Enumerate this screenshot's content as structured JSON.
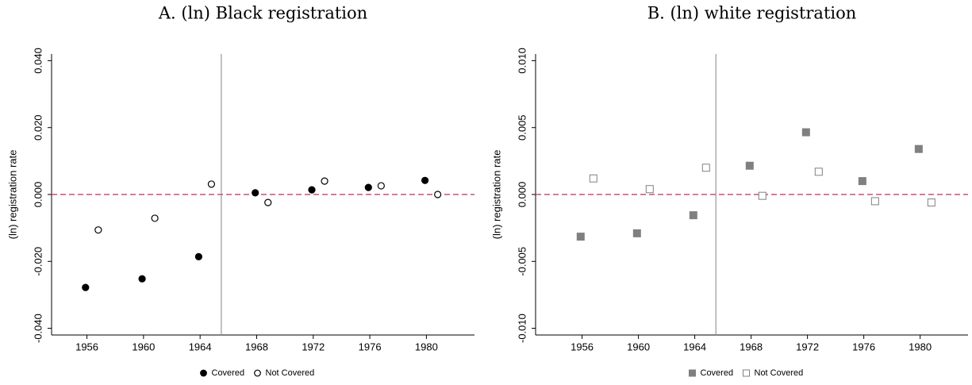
{
  "chart_data": [
    {
      "type": "scatter",
      "title": "A. (ln) Black registration",
      "ylabel": "(ln) registration rate",
      "xlim": [
        1953.5,
        1983.4
      ],
      "ylim": [
        -0.042,
        0.042
      ],
      "xticks": [
        1956,
        1960,
        1964,
        1968,
        1972,
        1976,
        1980
      ],
      "yticks": [
        {
          "value": -0.04,
          "label": "-0.040"
        },
        {
          "value": -0.02,
          "label": "-0.020"
        },
        {
          "value": 0,
          "label": "0.000"
        },
        {
          "value": 0.02,
          "label": "0.020"
        },
        {
          "value": 0.04,
          "label": "0.040"
        }
      ],
      "hline": 0,
      "hline_color": "#c8507a",
      "vline": 1965.5,
      "vline_color": "#999999",
      "series": [
        {
          "name": "Covered",
          "marker": "circle",
          "color": "#000000",
          "filled": true,
          "x": [
            1955.9,
            1959.9,
            1963.9,
            1967.9,
            1971.9,
            1975.9,
            1979.9
          ],
          "values": [
            -0.0278,
            -0.0252,
            -0.0186,
            0.0005,
            0.0014,
            0.0021,
            0.0042
          ]
        },
        {
          "name": "Not Covered",
          "marker": "circle",
          "color": "#000000",
          "filled": false,
          "x": [
            1956.8,
            1960.8,
            1964.8,
            1968.8,
            1972.8,
            1976.8,
            1980.8
          ],
          "values": [
            -0.0106,
            -0.0071,
            0.0031,
            -0.0024,
            0.004,
            0.0026,
            0.0
          ]
        }
      ]
    },
    {
      "type": "scatter",
      "title": "B. (ln) white registration",
      "ylabel": "(ln) registration rate",
      "xlim": [
        1952.7,
        1983.4
      ],
      "ylim": [
        -0.0105,
        0.0105
      ],
      "xticks": [
        1956,
        1960,
        1964,
        1968,
        1972,
        1976,
        1980
      ],
      "yticks": [
        {
          "value": -0.01,
          "label": "-0.010"
        },
        {
          "value": -0.005,
          "label": "-0.005"
        },
        {
          "value": 0,
          "label": "0.000"
        },
        {
          "value": 0.005,
          "label": "0.005"
        },
        {
          "value": 0.01,
          "label": "0.010"
        }
      ],
      "hline": 0,
      "hline_color": "#c8507a",
      "vline": 1965.5,
      "vline_color": "#999999",
      "series": [
        {
          "name": "Covered",
          "marker": "square",
          "color": "#808080",
          "filled": true,
          "x": [
            1955.9,
            1959.9,
            1963.9,
            1967.9,
            1971.9,
            1975.9,
            1979.9
          ],
          "values": [
            -0.00315,
            -0.0029,
            -0.00155,
            0.00215,
            0.00465,
            0.001,
            0.0034
          ]
        },
        {
          "name": "Not Covered",
          "marker": "square",
          "color": "#808080",
          "filled": false,
          "x": [
            1956.8,
            1960.8,
            1964.8,
            1968.8,
            1972.8,
            1976.8,
            1980.8
          ],
          "values": [
            0.0012,
            0.0004,
            0.002,
            -0.0001,
            0.0017,
            -0.0005,
            -0.0006
          ]
        }
      ]
    }
  ]
}
